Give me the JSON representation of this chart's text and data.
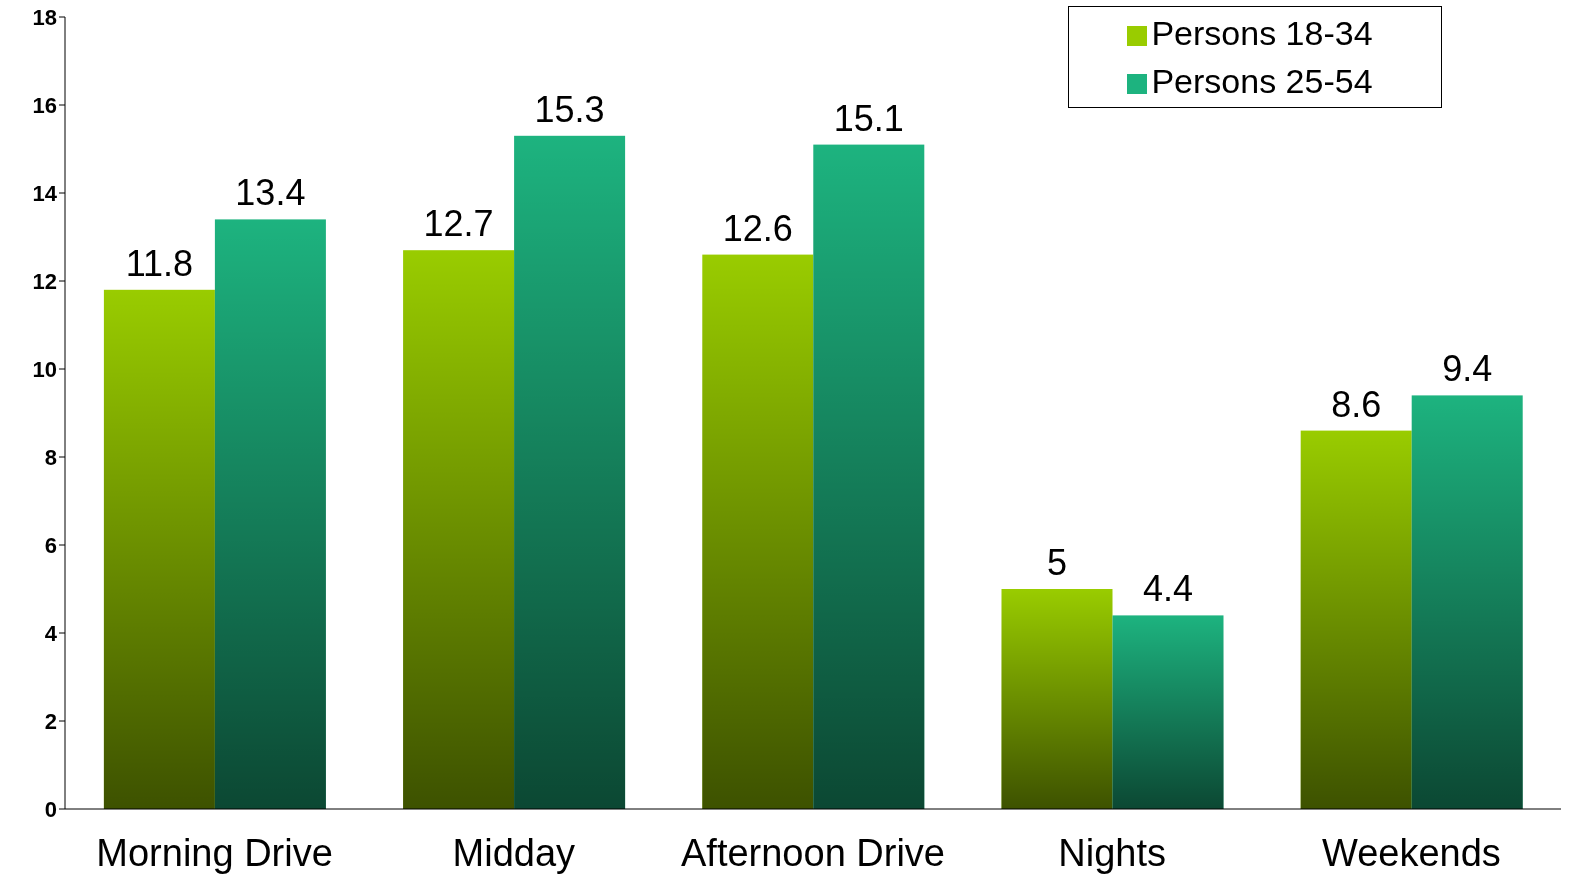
{
  "chart_data": {
    "type": "bar",
    "categories": [
      "Morning Drive",
      "Midday",
      "Afternoon Drive",
      "Nights",
      "Weekends"
    ],
    "series": [
      {
        "name": "Persons 18-34",
        "color": "#99cc00",
        "values": [
          11.8,
          12.7,
          12.6,
          5,
          8.6
        ]
      },
      {
        "name": "Persons 25-54",
        "color": "#1db37f",
        "values": [
          13.4,
          15.3,
          15.1,
          4.4,
          9.4
        ]
      }
    ],
    "ylim": [
      0,
      18
    ],
    "yticks": [
      0,
      2,
      4,
      6,
      8,
      10,
      12,
      14,
      16,
      18
    ],
    "grid": false,
    "legend": "top right",
    "data_labels": true
  }
}
